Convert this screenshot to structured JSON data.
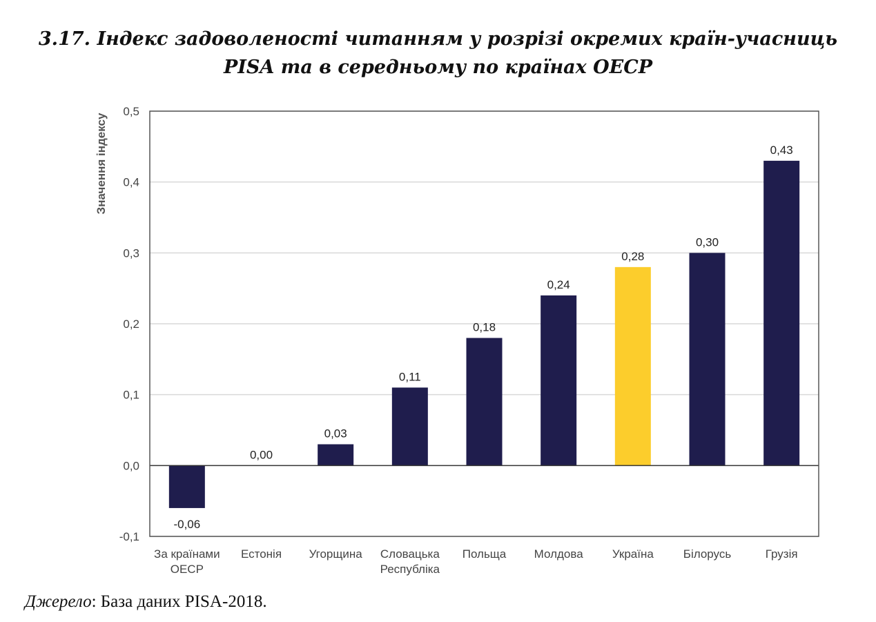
{
  "title_line1": "3.17. Індекс задоволеності читанням у розрізі окремих країн-учасниць",
  "title_line2": "PISA та в середньому по країнах ОЕСР",
  "source": {
    "label": "Джерело",
    "text": ": База даних PISA-2018."
  },
  "colors": {
    "bar": "#1f1d4d",
    "highlight": "#fccd2c",
    "grid": "#d9d9d9",
    "axis": "#555555"
  },
  "chart_data": {
    "type": "bar",
    "title": "",
    "xlabel": "",
    "ylabel": "Значення індексу",
    "ylim": [
      -0.1,
      0.5
    ],
    "yticks": [
      -0.1,
      0.0,
      0.1,
      0.2,
      0.3,
      0.4,
      0.5
    ],
    "ytick_labels": [
      "-0,1",
      "0,0",
      "0,1",
      "0,2",
      "0,3",
      "0,4",
      "0,5"
    ],
    "grid": true,
    "categories": [
      [
        "За країнами",
        "ОЕСР"
      ],
      [
        "Естонія"
      ],
      [
        "Угорщина"
      ],
      [
        "Словацька",
        "Республіка"
      ],
      [
        "Польща"
      ],
      [
        "Молдова"
      ],
      [
        "Україна"
      ],
      [
        "Білорусь"
      ],
      [
        "Грузія"
      ]
    ],
    "values": [
      -0.06,
      0.0,
      0.03,
      0.11,
      0.18,
      0.24,
      0.28,
      0.3,
      0.43
    ],
    "value_labels": [
      "-0,06",
      "0,00",
      "0,03",
      "0,11",
      "0,18",
      "0,24",
      "0,28",
      "0,30",
      "0,43"
    ],
    "highlight_index": 6
  }
}
